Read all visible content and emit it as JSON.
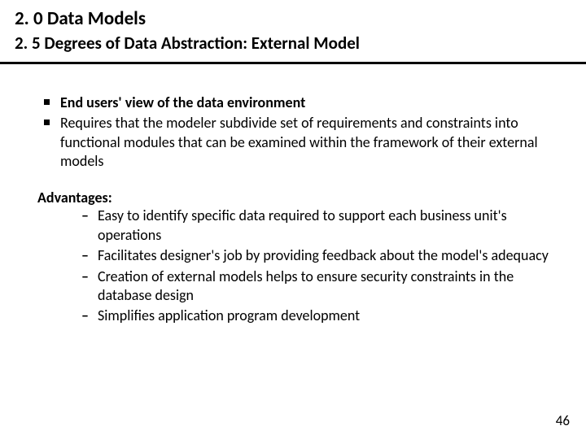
{
  "header": {
    "title": "2. 0 Data Models",
    "subtitle": "2. 5 Degrees of Data Abstraction: External Model"
  },
  "bullets": [
    {
      "text": "End users' view of the data environment",
      "bold": true
    },
    {
      "text": "Requires that the modeler subdivide set of requirements and constraints into functional modules that can be examined within the framework of their external models",
      "bold": false
    }
  ],
  "advantages_label": "Advantages:",
  "advantages": [
    "Easy to identify specific data required to support each business unit's operations",
    "Facilitates designer's job by providing feedback about the model's adequacy",
    "Creation of external models helps to ensure security constraints in the database design",
    "Simplifies application program development"
  ],
  "page_number": "46",
  "colors": {
    "background": "#ffffff",
    "text": "#000000",
    "divider": "#000000"
  },
  "typography": {
    "title_fontsize": 23,
    "subtitle_fontsize": 21,
    "body_fontsize": 18
  }
}
